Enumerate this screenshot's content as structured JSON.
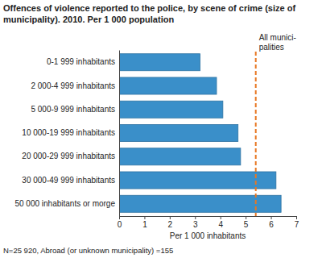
{
  "chart_data": {
    "type": "bar",
    "orientation": "horizontal",
    "title": "Offences of violence reported to the police, by scene of crime (size of municipality). 2010. Per 1 000 population",
    "categories": [
      "0-1 999 inhabitants",
      "2 000-4 999 inhabitants",
      "5 000-9 999 inhabitants",
      "10 000-19 999 inhabitants",
      "20 000-29 999 inhabitants",
      "30 000-49 999 inhabitants",
      "50 000 inhabitants or morge"
    ],
    "values": [
      3.2,
      3.85,
      4.1,
      4.7,
      4.8,
      6.2,
      6.4
    ],
    "color": "#3a8fc9",
    "xlim": [
      0,
      7
    ],
    "xticks": [
      0,
      1,
      2,
      3,
      4,
      5,
      6,
      7
    ],
    "x_label": "Per 1 000 inhabitants",
    "grid": false,
    "reference_line": {
      "value": 5.4,
      "label": [
        "All munici-",
        "palities"
      ],
      "color": "#e87722"
    },
    "footnote": "N=25 920, Abroad (or unknown municipality) =155"
  }
}
